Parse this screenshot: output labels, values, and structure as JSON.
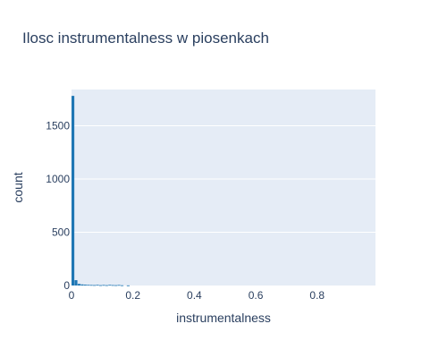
{
  "chart_data": {
    "type": "bar",
    "title": "Ilosc instrumentalness w piosenkach",
    "xlabel": "instrumentalness",
    "ylabel": "count",
    "xlim": [
      0,
      0.99
    ],
    "ylim": [
      0,
      1840
    ],
    "x_ticks": [
      0,
      0.2,
      0.4,
      0.6,
      0.8
    ],
    "x_tick_labels": [
      "0",
      "0.2",
      "0.4",
      "0.6",
      "0.8"
    ],
    "y_ticks": [
      0,
      500,
      1000,
      1500
    ],
    "y_tick_labels": [
      "0",
      "500",
      "1000",
      "1500"
    ],
    "bin_width": 0.01,
    "bins": [
      {
        "x": 0.0,
        "y": 1780
      },
      {
        "x": 0.01,
        "y": 50
      },
      {
        "x": 0.02,
        "y": 15
      },
      {
        "x": 0.03,
        "y": 10
      },
      {
        "x": 0.04,
        "y": 8
      },
      {
        "x": 0.05,
        "y": 6
      },
      {
        "x": 0.06,
        "y": 5
      },
      {
        "x": 0.07,
        "y": 4
      },
      {
        "x": 0.08,
        "y": 6
      },
      {
        "x": 0.09,
        "y": 3
      },
      {
        "x": 0.1,
        "y": 5
      },
      {
        "x": 0.11,
        "y": 3
      },
      {
        "x": 0.12,
        "y": 6
      },
      {
        "x": 0.13,
        "y": 4
      },
      {
        "x": 0.14,
        "y": 3
      },
      {
        "x": 0.15,
        "y": 5
      },
      {
        "x": 0.16,
        "y": 2
      },
      {
        "x": 0.18,
        "y": 1
      }
    ],
    "colors": {
      "bar": "#1f77b4",
      "plot_bg": "#e5ecf6",
      "grid": "#ffffff",
      "text": "#2a3f5f"
    },
    "grid": true
  }
}
